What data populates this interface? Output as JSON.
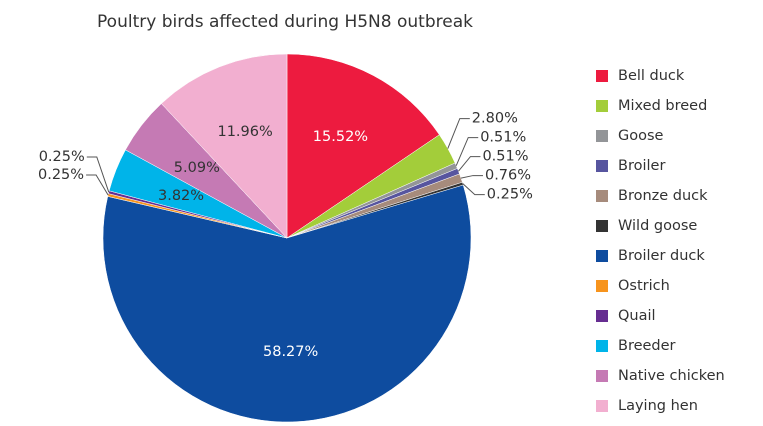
{
  "chart_data": {
    "type": "pie",
    "title": "Poultry birds affected during H5N8 outbreak",
    "categories": [
      "Bell duck",
      "Mixed breed",
      "Goose",
      "Broiler",
      "Bronze duck",
      "Wild goose",
      "Broiler duck",
      "Ostrich",
      "Quail",
      "Breeder",
      "Native chicken",
      "Laying hen"
    ],
    "values": [
      15.52,
      2.8,
      0.51,
      0.51,
      0.76,
      0.25,
      58.27,
      0.25,
      0.25,
      3.82,
      5.09,
      11.96
    ],
    "value_labels": [
      "15.52%",
      "2.80%",
      "0.51%",
      "0.51%",
      "0.76%",
      "0.25%",
      "58.27%",
      "0.25%",
      "0.25%",
      "3.82%",
      "5.09%",
      "11.96%"
    ],
    "colors": [
      "#ed1b3f",
      "#a3cd3a",
      "#939598",
      "#57559f",
      "#a68b7c",
      "#333333",
      "#0e4c9f",
      "#f7941d",
      "#662d91",
      "#00b4e9",
      "#c57ab4",
      "#f2afd0"
    ],
    "legend": "right"
  }
}
